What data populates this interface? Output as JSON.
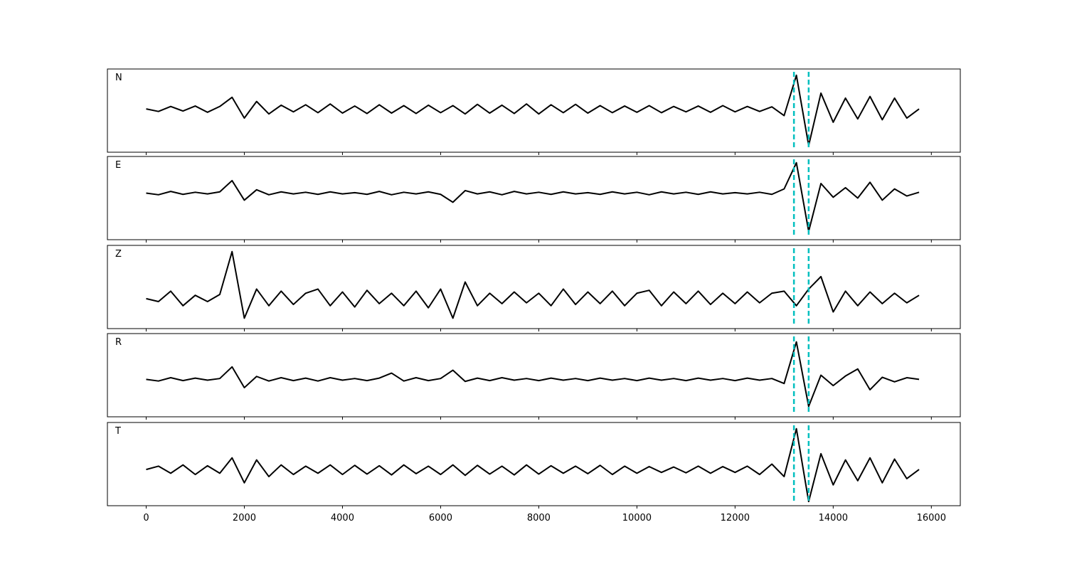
{
  "chart_data": [
    {
      "type": "line",
      "label": "N",
      "color": "#000000",
      "xlim": [
        -790,
        16590
      ],
      "ylim": [
        -1,
        1
      ],
      "xticks": [
        0,
        2000,
        4000,
        6000,
        8000,
        10000,
        12000,
        14000,
        16000
      ],
      "xtick_labels": false,
      "vlines": [
        13200,
        13500
      ],
      "vline_color": "#00bfbf",
      "x": [
        0,
        250,
        500,
        750,
        1000,
        1250,
        1500,
        1750,
        2000,
        2250,
        2500,
        2750,
        3000,
        3250,
        3500,
        3750,
        4000,
        4250,
        4500,
        4750,
        5000,
        5250,
        5500,
        5750,
        6000,
        6250,
        6500,
        6750,
        7000,
        7250,
        7500,
        7750,
        8000,
        8250,
        8500,
        8750,
        9000,
        9250,
        9500,
        9750,
        10000,
        10250,
        10500,
        10750,
        11000,
        11250,
        11500,
        11750,
        12000,
        12250,
        12500,
        12750,
        13000,
        13250,
        13500,
        13750,
        14000,
        14250,
        14500,
        14750,
        15000,
        15250,
        15500,
        15750
      ],
      "values": [
        0.04,
        -0.02,
        0.1,
        -0.01,
        0.11,
        -0.04,
        0.1,
        0.32,
        -0.18,
        0.22,
        -0.08,
        0.13,
        -0.03,
        0.14,
        -0.05,
        0.16,
        -0.06,
        0.11,
        -0.07,
        0.14,
        -0.06,
        0.12,
        -0.07,
        0.13,
        -0.05,
        0.12,
        -0.08,
        0.15,
        -0.06,
        0.13,
        -0.07,
        0.16,
        -0.08,
        0.14,
        -0.05,
        0.15,
        -0.06,
        0.12,
        -0.05,
        0.11,
        -0.04,
        0.12,
        -0.05,
        0.1,
        -0.03,
        0.11,
        -0.04,
        0.12,
        -0.03,
        0.1,
        -0.02,
        0.09,
        -0.12,
        0.85,
        -0.84,
        0.42,
        -0.28,
        0.3,
        -0.2,
        0.34,
        -0.22,
        0.3,
        -0.18,
        0.04
      ]
    },
    {
      "type": "line",
      "label": "E",
      "color": "#000000",
      "xlim": [
        -790,
        16590
      ],
      "ylim": [
        -1,
        1
      ],
      "xticks": [
        0,
        2000,
        4000,
        6000,
        8000,
        10000,
        12000,
        14000,
        16000
      ],
      "xtick_labels": false,
      "vlines": [
        13200,
        13500
      ],
      "vline_color": "#00bfbf",
      "x": [
        0,
        250,
        500,
        750,
        1000,
        1250,
        1500,
        1750,
        2000,
        2250,
        2500,
        2750,
        3000,
        3250,
        3500,
        3750,
        4000,
        4250,
        4500,
        4750,
        5000,
        5250,
        5500,
        5750,
        6000,
        6250,
        6500,
        6750,
        7000,
        7250,
        7500,
        7750,
        8000,
        8250,
        8500,
        8750,
        9000,
        9250,
        9500,
        9750,
        10000,
        10250,
        10500,
        10750,
        11000,
        11250,
        11500,
        11750,
        12000,
        12250,
        12500,
        12750,
        13000,
        13250,
        13500,
        13750,
        14000,
        14250,
        14500,
        14750,
        15000,
        15250,
        15500,
        15750
      ],
      "values": [
        0.12,
        0.08,
        0.16,
        0.09,
        0.14,
        0.1,
        0.15,
        0.42,
        -0.05,
        0.2,
        0.08,
        0.15,
        0.1,
        0.14,
        0.09,
        0.15,
        0.1,
        0.13,
        0.09,
        0.16,
        0.08,
        0.14,
        0.1,
        0.15,
        0.09,
        -0.1,
        0.18,
        0.1,
        0.15,
        0.08,
        0.16,
        0.1,
        0.14,
        0.09,
        0.15,
        0.1,
        0.13,
        0.09,
        0.15,
        0.1,
        0.14,
        0.08,
        0.15,
        0.1,
        0.14,
        0.09,
        0.15,
        0.1,
        0.13,
        0.1,
        0.14,
        0.09,
        0.22,
        0.85,
        -0.8,
        0.35,
        0.02,
        0.25,
        0.0,
        0.38,
        -0.05,
        0.22,
        0.05,
        0.14
      ]
    },
    {
      "type": "line",
      "label": "Z",
      "color": "#000000",
      "xlim": [
        -790,
        16590
      ],
      "ylim": [
        -1,
        1
      ],
      "xticks": [
        0,
        2000,
        4000,
        6000,
        8000,
        10000,
        12000,
        14000,
        16000
      ],
      "xtick_labels": false,
      "vlines": [
        13200,
        13500
      ],
      "vline_color": "#00bfbf",
      "x": [
        0,
        250,
        500,
        750,
        1000,
        1250,
        1500,
        1750,
        2000,
        2250,
        2500,
        2750,
        3000,
        3250,
        3500,
        3750,
        4000,
        4250,
        4500,
        4750,
        5000,
        5250,
        5500,
        5750,
        6000,
        6250,
        6500,
        6750,
        7000,
        7250,
        7500,
        7750,
        8000,
        8250,
        8500,
        8750,
        9000,
        9250,
        9500,
        9750,
        10000,
        10250,
        10500,
        10750,
        11000,
        11250,
        11500,
        11750,
        12000,
        12250,
        12500,
        12750,
        13000,
        13250,
        13500,
        13750,
        14000,
        14250,
        14500,
        14750,
        15000,
        15250,
        15500,
        15750
      ],
      "values": [
        -0.28,
        -0.35,
        -0.1,
        -0.45,
        -0.2,
        -0.35,
        -0.18,
        0.85,
        -0.75,
        -0.05,
        -0.45,
        -0.1,
        -0.42,
        -0.15,
        -0.05,
        -0.45,
        -0.12,
        -0.48,
        -0.08,
        -0.4,
        -0.15,
        -0.45,
        -0.1,
        -0.5,
        -0.05,
        -0.75,
        0.12,
        -0.45,
        -0.15,
        -0.4,
        -0.12,
        -0.38,
        -0.15,
        -0.45,
        -0.05,
        -0.42,
        -0.12,
        -0.4,
        -0.1,
        -0.45,
        -0.15,
        -0.08,
        -0.45,
        -0.12,
        -0.4,
        -0.1,
        -0.42,
        -0.15,
        -0.4,
        -0.12,
        -0.38,
        -0.15,
        -0.1,
        -0.45,
        -0.05,
        0.25,
        -0.6,
        -0.1,
        -0.45,
        -0.12,
        -0.4,
        -0.15,
        -0.38,
        -0.2
      ]
    },
    {
      "type": "line",
      "label": "R",
      "color": "#000000",
      "xlim": [
        -790,
        16590
      ],
      "ylim": [
        -1,
        1
      ],
      "xticks": [
        0,
        2000,
        4000,
        6000,
        8000,
        10000,
        12000,
        14000,
        16000
      ],
      "xtick_labels": false,
      "vlines": [
        13200,
        13500
      ],
      "vline_color": "#00bfbf",
      "x": [
        0,
        250,
        500,
        750,
        1000,
        1250,
        1500,
        1750,
        2000,
        2250,
        2500,
        2750,
        3000,
        3250,
        3500,
        3750,
        4000,
        4250,
        4500,
        4750,
        5000,
        5250,
        5500,
        5750,
        6000,
        6250,
        6500,
        6750,
        7000,
        7250,
        7500,
        7750,
        8000,
        8250,
        8500,
        8750,
        9000,
        9250,
        9500,
        9750,
        10000,
        10250,
        10500,
        10750,
        11000,
        11250,
        11500,
        11750,
        12000,
        12250,
        12500,
        12750,
        13000,
        13250,
        13500,
        13750,
        14000,
        14250,
        14500,
        14750,
        15000,
        15250,
        15500,
        15750
      ],
      "values": [
        -0.1,
        -0.14,
        -0.06,
        -0.13,
        -0.07,
        -0.12,
        -0.08,
        0.2,
        -0.3,
        -0.03,
        -0.14,
        -0.06,
        -0.13,
        -0.07,
        -0.14,
        -0.06,
        -0.12,
        -0.08,
        -0.13,
        -0.07,
        0.05,
        -0.14,
        -0.06,
        -0.13,
        -0.08,
        0.12,
        -0.15,
        -0.07,
        -0.13,
        -0.06,
        -0.12,
        -0.08,
        -0.13,
        -0.07,
        -0.12,
        -0.08,
        -0.13,
        -0.07,
        -0.12,
        -0.08,
        -0.13,
        -0.07,
        -0.12,
        -0.08,
        -0.13,
        -0.07,
        -0.12,
        -0.08,
        -0.13,
        -0.07,
        -0.12,
        -0.08,
        -0.2,
        0.8,
        -0.75,
        0.0,
        -0.25,
        -0.02,
        0.15,
        -0.35,
        -0.05,
        -0.16,
        -0.06,
        -0.1
      ]
    },
    {
      "type": "line",
      "label": "T",
      "color": "#000000",
      "xlim": [
        -790,
        16590
      ],
      "ylim": [
        -1,
        1
      ],
      "xticks": [
        0,
        2000,
        4000,
        6000,
        8000,
        10000,
        12000,
        14000,
        16000
      ],
      "xtick_labels": true,
      "vlines": [
        13200,
        13500
      ],
      "vline_color": "#00bfbf",
      "x": [
        0,
        250,
        500,
        750,
        1000,
        1250,
        1500,
        1750,
        2000,
        2250,
        2500,
        2750,
        3000,
        3250,
        3500,
        3750,
        4000,
        4250,
        4500,
        4750,
        5000,
        5250,
        5500,
        5750,
        6000,
        6250,
        6500,
        6750,
        7000,
        7250,
        7500,
        7750,
        8000,
        8250,
        8500,
        8750,
        9000,
        9250,
        9500,
        9750,
        10000,
        10250,
        10500,
        10750,
        11000,
        11250,
        11500,
        11750,
        12000,
        12250,
        12500,
        12750,
        13000,
        13250,
        13500,
        13750,
        14000,
        14250,
        14500,
        14750,
        15000,
        15250,
        15500,
        15750
      ],
      "values": [
        -0.13,
        -0.05,
        -0.22,
        -0.02,
        -0.25,
        -0.04,
        -0.22,
        0.15,
        -0.45,
        0.1,
        -0.3,
        -0.02,
        -0.25,
        -0.05,
        -0.22,
        -0.02,
        -0.25,
        -0.03,
        -0.24,
        -0.04,
        -0.26,
        -0.02,
        -0.23,
        -0.05,
        -0.25,
        -0.02,
        -0.27,
        -0.03,
        -0.24,
        -0.05,
        -0.26,
        -0.02,
        -0.24,
        -0.04,
        -0.22,
        -0.05,
        -0.23,
        -0.03,
        -0.25,
        -0.05,
        -0.22,
        -0.06,
        -0.2,
        -0.07,
        -0.21,
        -0.05,
        -0.22,
        -0.06,
        -0.2,
        -0.05,
        -0.25,
        0.0,
        -0.3,
        0.85,
        -0.9,
        0.25,
        -0.5,
        0.1,
        -0.4,
        0.15,
        -0.45,
        0.12,
        -0.35,
        -0.13
      ]
    }
  ]
}
